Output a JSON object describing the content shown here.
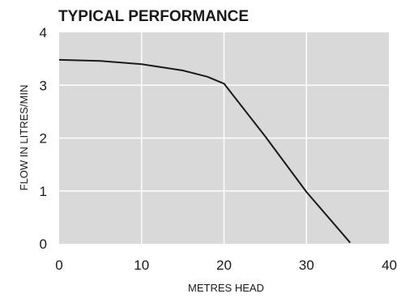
{
  "chart_data": {
    "type": "line",
    "title": "TYPICAL PERFORMANCE",
    "xlabel": "METRES HEAD",
    "ylabel": "FLOW IN LITRES/MIN",
    "xlim": [
      0,
      40
    ],
    "ylim": [
      0,
      4
    ],
    "xticks": [
      0,
      10,
      20,
      30,
      40
    ],
    "yticks": [
      0,
      1,
      2,
      3,
      4
    ],
    "grid": true,
    "plot_background": "#d9d9d9",
    "grid_color": "#ffffff",
    "line_color": "#1a1a1a",
    "series": [
      {
        "x": [
          0,
          5,
          10,
          15,
          18,
          20,
          25,
          30,
          35.3
        ],
        "values": [
          3.48,
          3.46,
          3.4,
          3.28,
          3.16,
          3.03,
          2.03,
          0.98,
          0.02
        ]
      }
    ]
  }
}
